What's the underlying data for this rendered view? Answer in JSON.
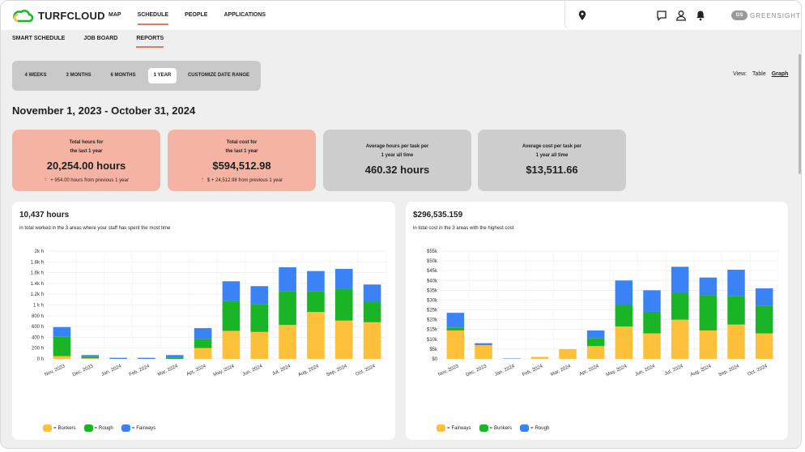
{
  "app": {
    "logo_text": "TURFCLOUD"
  },
  "nav": {
    "items": [
      {
        "label": "MAP",
        "active": false
      },
      {
        "label": "SCHEDULE",
        "active": true
      },
      {
        "label": "PEOPLE",
        "active": false
      },
      {
        "label": "APPLICATIONS",
        "active": false
      }
    ]
  },
  "account": {
    "badge": "GS",
    "brand": "GREENSIGHT"
  },
  "subnav": {
    "items": [
      {
        "label": "SMART SCHEDULE",
        "active": false
      },
      {
        "label": "JOB BOARD",
        "active": false
      },
      {
        "label": "REPORTS",
        "active": true
      }
    ]
  },
  "range": {
    "options": [
      "4 WEEKS",
      "3 MONTHS",
      "6 MONTHS",
      "1 YEAR",
      "CUSTOMIZE DATE RANGE"
    ],
    "selected": "1 YEAR"
  },
  "view": {
    "label": "View:",
    "table": "Table",
    "graph": "Graph",
    "selected": "Graph"
  },
  "date_range": "November 1, 2023 - October 31, 2024",
  "stats": [
    {
      "label1": "Total hours for",
      "label2": "the last 1 year",
      "value": "20,254.00 hours",
      "change": "+ 954.00 hours from previous 1 year"
    },
    {
      "label1": "Total cost for",
      "label2": "the last 1 year",
      "value": "$594,512.98",
      "change": "$ + 24,512.98 from previous 1 year"
    },
    {
      "label1": "Average hours per task per",
      "label2": "1 year all time",
      "value": "460.32 hours"
    },
    {
      "label1": "Average cost per task per",
      "label2": "1 year all time",
      "value": "$13,511.66"
    }
  ],
  "colors": {
    "accent": "#e07a5f",
    "yellow": "#fdc03a",
    "green": "#1ab427",
    "blue": "#3b82f6",
    "pink_card": "#f5b4a3",
    "gray_card": "#cdcdcd"
  },
  "chart_data": [
    {
      "type": "bar",
      "stacked": true,
      "title": "10,437 hours",
      "subtitle": "in total worked in the 3 areas where your staff has spent the most time",
      "categories": [
        "Nov, 2023",
        "Dec, 2023",
        "Jan, 2024",
        "Feb, 2024",
        "Mar, 2024",
        "Apr, 2024",
        "May, 2024",
        "Jun, 2024",
        "Jul, 2024",
        "Aug, 2024",
        "Sep, 2024",
        "Oct, 2024"
      ],
      "yticks": [
        "0 h",
        "200 h",
        "400 h",
        "600 h",
        "800 h",
        "1 k h",
        "1.2k h",
        "1.4k h",
        "1.6k h",
        "1.8k h",
        "2k h"
      ],
      "ylim": [
        0,
        2000
      ],
      "series": [
        {
          "name": "Bunkers",
          "color": "#fdc03a",
          "values": [
            50,
            10,
            0,
            0,
            0,
            200,
            520,
            500,
            630,
            870,
            710,
            680
          ]
        },
        {
          "name": "Rough",
          "color": "#1ab427",
          "values": [
            360,
            30,
            0,
            0,
            20,
            170,
            560,
            520,
            630,
            380,
            590,
            380
          ]
        },
        {
          "name": "Fairways",
          "color": "#3b82f6",
          "values": [
            180,
            30,
            20,
            20,
            50,
            200,
            360,
            330,
            440,
            380,
            370,
            320
          ]
        }
      ],
      "legend_position": "bottom-left",
      "grid": true
    },
    {
      "type": "bar",
      "stacked": true,
      "title": "$296,535.159",
      "subtitle": "in total cost in the 3 areas with the highest cost",
      "categories": [
        "Nov, 2023",
        "Dec, 2023",
        "Jan, 2024",
        "Feb, 2024",
        "Mar, 2024",
        "Apr, 2024",
        "May, 2024",
        "Jun, 2024",
        "Jul, 2024",
        "Aug, 2024",
        "Sep, 2024",
        "Oct, 2024"
      ],
      "yticks": [
        "$0",
        "$5k",
        "$10k",
        "$15k",
        "$20k",
        "$25k",
        "$30k",
        "$35k",
        "$40k",
        "$45k",
        "$50k",
        "$55k"
      ],
      "ylim": [
        0,
        55000
      ],
      "series": [
        {
          "name": "Fairways",
          "color": "#fdc03a",
          "values": [
            14500,
            7000,
            0,
            1000,
            5000,
            6500,
            16500,
            13000,
            20000,
            14500,
            17500,
            13000
          ]
        },
        {
          "name": "Bunkers",
          "color": "#1ab427",
          "values": [
            1500,
            0,
            0,
            0,
            0,
            4000,
            11000,
            11000,
            13500,
            18000,
            14500,
            14000
          ]
        },
        {
          "name": "Rough",
          "color": "#3b82f6",
          "values": [
            7500,
            1000,
            0,
            0,
            0,
            4000,
            12500,
            11000,
            13500,
            9000,
            13500,
            9000
          ]
        }
      ],
      "legend_position": "bottom-left",
      "grid": true
    }
  ],
  "legend_suffix": "= "
}
